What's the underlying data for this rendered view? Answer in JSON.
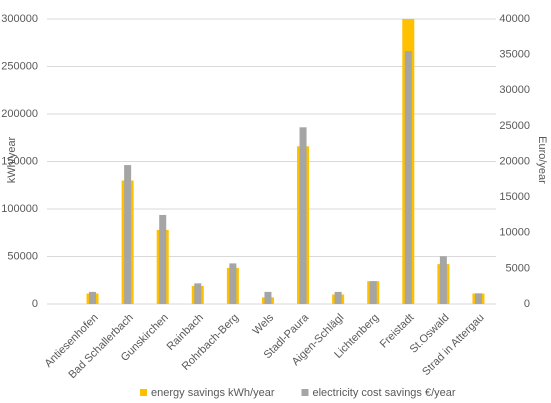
{
  "chart_data": {
    "type": "bar",
    "categories": [
      "Antiesenhofen",
      "Bad Schallerbach",
      "Gunskirchen",
      "Rainbach",
      "Rohrbach-Berg",
      "Wels",
      "Stadl-Paura",
      "Aigen-Schlägl",
      "Lichtenberg",
      "Freistadt",
      "St.Oswald",
      "Strad in Attergau"
    ],
    "series": [
      {
        "name": "energy savings kWh/year",
        "color": "#ffc000",
        "values": [
          11000,
          130000,
          78000,
          19000,
          38000,
          7000,
          166000,
          10000,
          24000,
          300000,
          42000,
          11000
        ]
      },
      {
        "name": "electricity cost savings €/year",
        "color": "#a5a5a5",
        "axis": "y2",
        "values": [
          1700,
          19500,
          12500,
          2900,
          5700,
          1700,
          24800,
          1700,
          3200,
          35500,
          6700,
          1500
        ]
      }
    ],
    "ylabel": "kWh/year",
    "y2label": "Euro/year",
    "ylim": [
      0,
      300000
    ],
    "yticks": [
      0,
      50000,
      100000,
      150000,
      200000,
      250000,
      300000
    ],
    "y2lim": [
      0,
      40000
    ],
    "y2ticks": [
      0,
      5000,
      10000,
      15000,
      20000,
      25000,
      30000,
      35000,
      40000
    ],
    "grid": true,
    "legend": "bottom"
  }
}
